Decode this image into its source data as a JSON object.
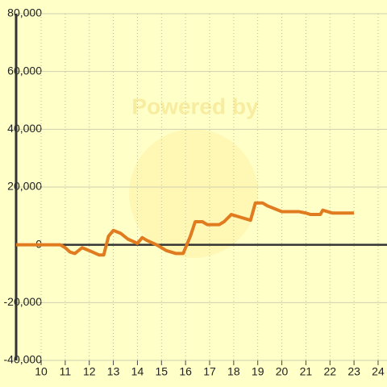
{
  "chart_data": {
    "type": "line",
    "watermark": "Powered by",
    "x": [
      8.96,
      10.8,
      11.0,
      11.2,
      11.4,
      11.7,
      12.0,
      12.4,
      12.6,
      12.8,
      13.0,
      13.3,
      13.6,
      14.0,
      14.2,
      14.4,
      14.8,
      15.2,
      15.6,
      15.9,
      16.2,
      16.4,
      16.7,
      16.9,
      17.4,
      17.6,
      17.9,
      18.3,
      18.7,
      18.9,
      19.2,
      19.4,
      20.0,
      20.7,
      21.0,
      21.2,
      21.6,
      21.7,
      22.1,
      22.4,
      23.0
    ],
    "series": [
      {
        "color": "#e07b20",
        "values": [
          0,
          0,
          -1000,
          -2500,
          -3000,
          -1000,
          -2000,
          -3500,
          -3500,
          3000,
          5000,
          4000,
          2000,
          500,
          2500,
          1500,
          0,
          -2000,
          -3000,
          -3000,
          3000,
          8000,
          8000,
          7000,
          7000,
          8000,
          10500,
          9500,
          8500,
          14500,
          14500,
          13500,
          11500,
          11500,
          11000,
          10500,
          10500,
          12000,
          11000,
          11000,
          11000
        ]
      }
    ],
    "xlim": [
      8.96,
      24.37
    ],
    "xticks": [
      10,
      11,
      12,
      13,
      14,
      15,
      16,
      17,
      18,
      19,
      20,
      21,
      22,
      23,
      24
    ],
    "ylim": [
      -40000,
      80000
    ],
    "yticks": [
      {
        "value": -40000,
        "label": "-40,000"
      },
      {
        "value": -20000,
        "label": "-20,000"
      },
      0,
      {
        "value": 20000,
        "label": "20,000"
      },
      {
        "value": 40000,
        "label": "40,000"
      },
      {
        "value": 60000,
        "label": "60,000"
      },
      {
        "value": 80000,
        "label": "80,000"
      }
    ],
    "grid": true
  }
}
